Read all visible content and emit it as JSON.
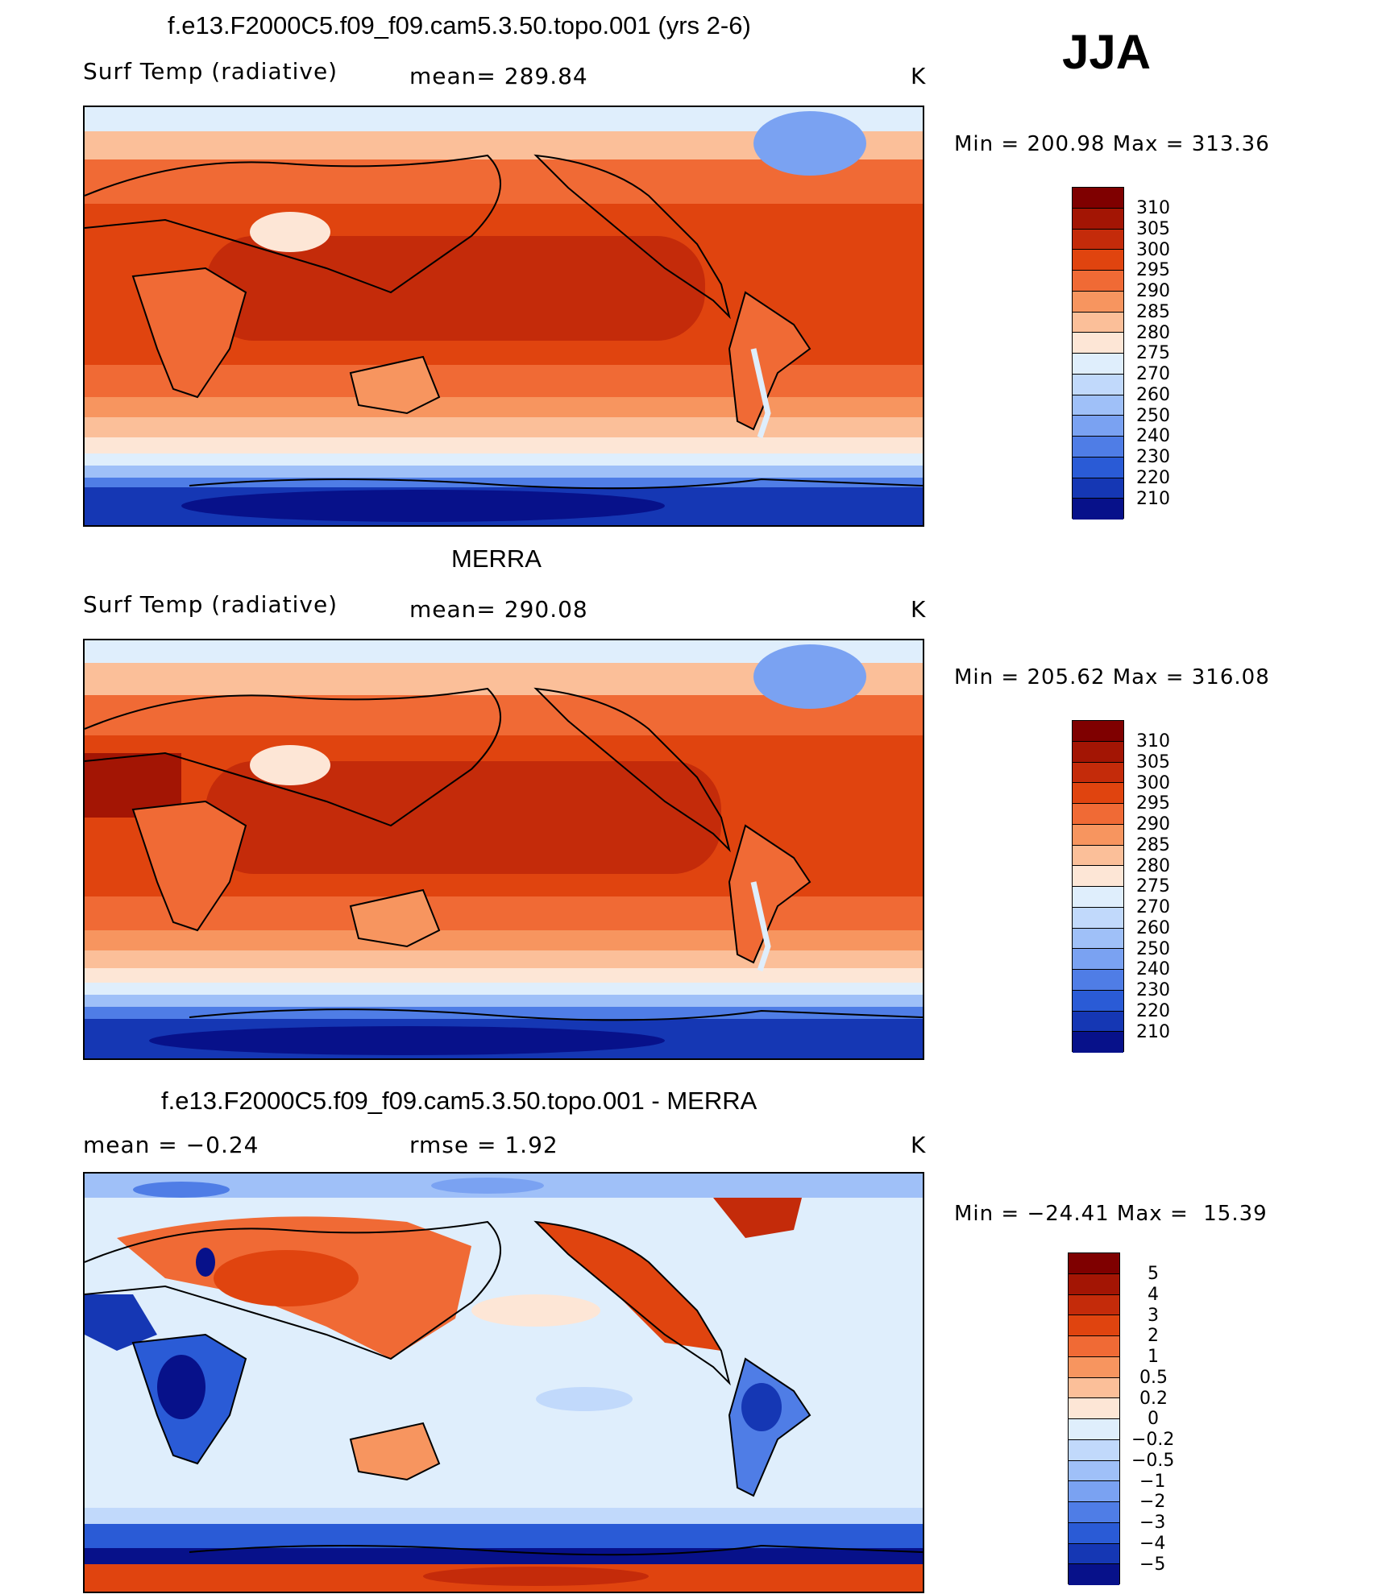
{
  "season": "JJA",
  "panels": [
    {
      "title": "f.e13.F2000C5.f09_f09.cam5.3.50.topo.001 (yrs 2-6)",
      "left_label": "Surf Temp (radiative)",
      "center_label": "mean= 289.84",
      "units": "K",
      "minmax": "Min = 200.98 Max = 313.36",
      "levels": [
        "310",
        "305",
        "300",
        "295",
        "290",
        "285",
        "280",
        "275",
        "270",
        "260",
        "250",
        "240",
        "230",
        "220",
        "210"
      ]
    },
    {
      "title": "MERRA",
      "left_label": "Surf Temp (radiative)",
      "center_label": "mean= 290.08",
      "units": "K",
      "minmax": "Min = 205.62 Max = 316.08",
      "levels": [
        "310",
        "305",
        "300",
        "295",
        "290",
        "285",
        "280",
        "275",
        "270",
        "260",
        "250",
        "240",
        "230",
        "220",
        "210"
      ]
    },
    {
      "title": "f.e13.F2000C5.f09_f09.cam5.3.50.topo.001 - MERRA",
      "left_label": "mean =   −0.24",
      "center_label": "rmse =    1.92",
      "units": "K",
      "minmax": "Min = −24.41 Max =  15.39",
      "levels": [
        "5",
        "4",
        "3",
        "2",
        "1",
        "0.5",
        "0.2",
        "0",
        "−0.2",
        "−0.5",
        "−1",
        "−2",
        "−3",
        "−4",
        "−5"
      ]
    }
  ],
  "colors": {
    "temp_scale": [
      "#7f0000",
      "#a31504",
      "#c42b0a",
      "#e0440f",
      "#f06a35",
      "#f7955f",
      "#fbbf99",
      "#fde6d6",
      "#dfeefc",
      "#c1d9fb",
      "#9fc0f8",
      "#7aa2f2",
      "#4f7de6",
      "#2a5bd6",
      "#1537b4",
      "#07118a"
    ],
    "diff_scale": [
      "#7f0000",
      "#a31504",
      "#c42b0a",
      "#e0440f",
      "#f06a35",
      "#f7955f",
      "#fbbf99",
      "#fde6d6",
      "#dfeefc",
      "#c1d9fb",
      "#9fc0f8",
      "#7aa2f2",
      "#4f7de6",
      "#2a5bd6",
      "#1537b4",
      "#07118a"
    ]
  }
}
